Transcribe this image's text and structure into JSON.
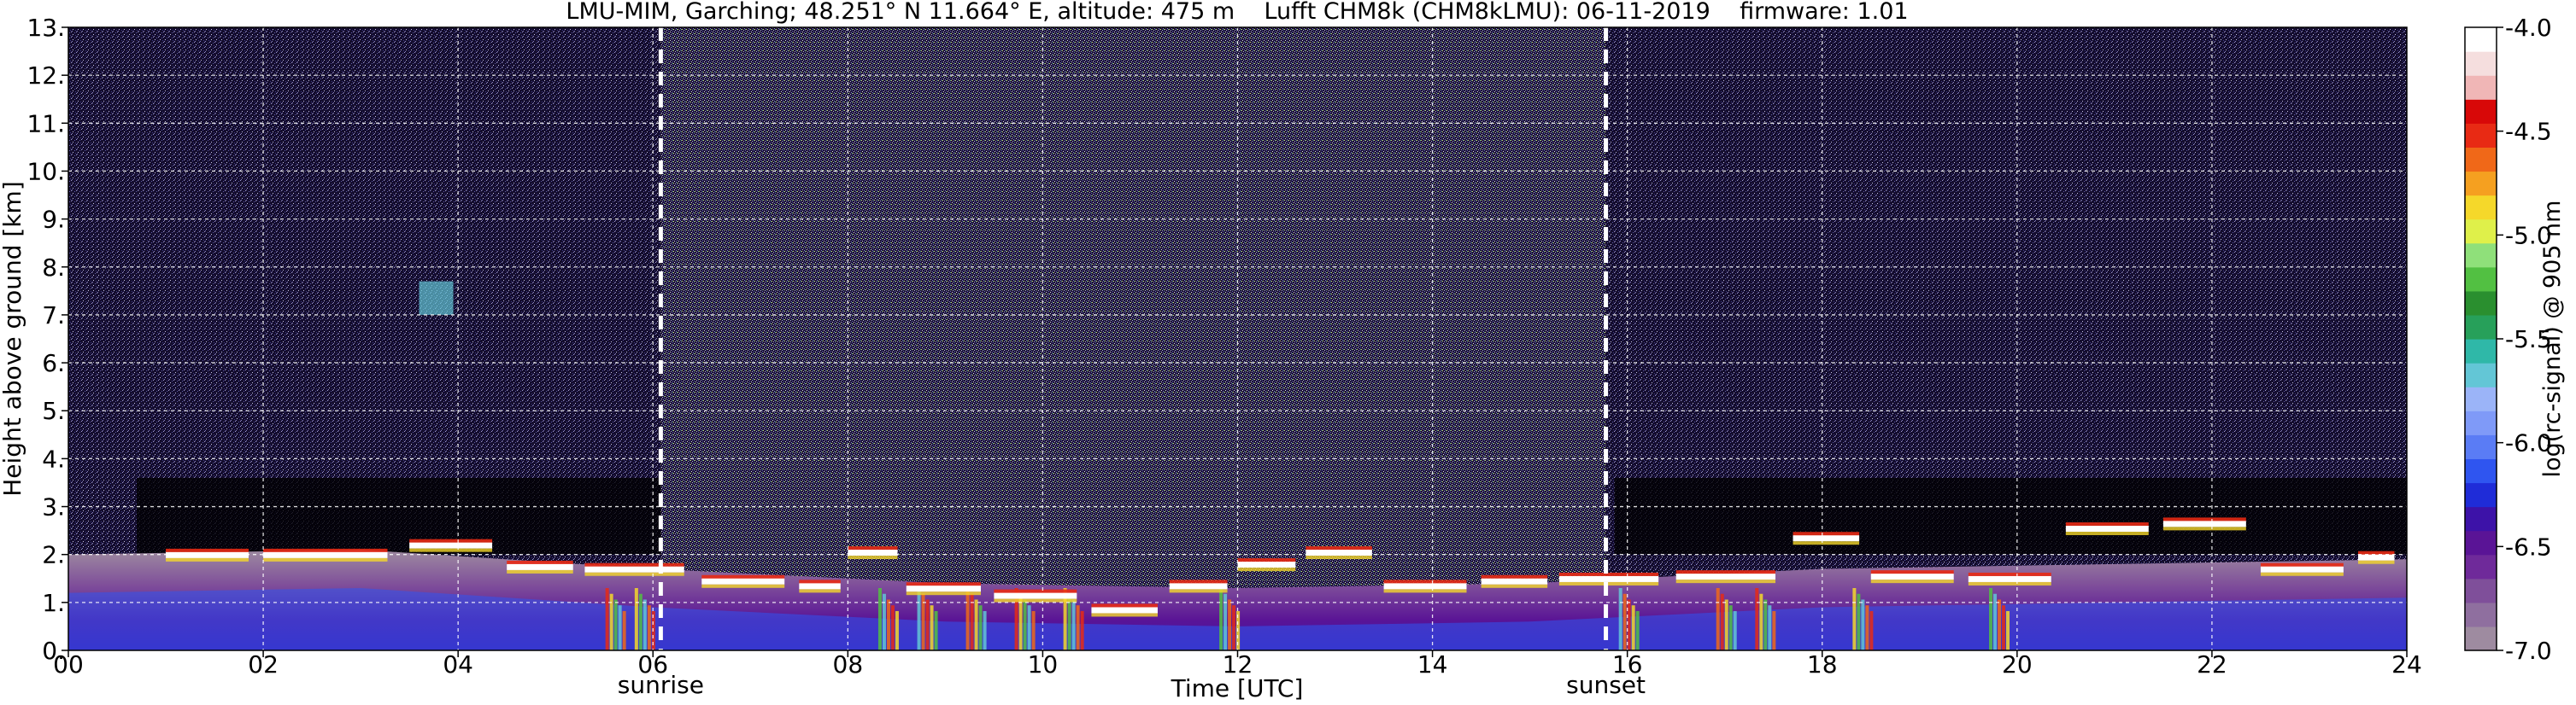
{
  "chart_data": {
    "type": "heatmap",
    "title": "LMU-MIM, Garching; 48.251° N 11.664° E, altitude: 475 m    Lufft CHM8k (CHM8kLMU): 06-11-2019    firmware: 1.01",
    "xlabel": "Time [UTC]",
    "ylabel": "Height above ground [km]",
    "xlim": [
      0,
      24
    ],
    "ylim": [
      0,
      13
    ],
    "x_ticks": [
      0,
      2,
      4,
      6,
      8,
      10,
      12,
      14,
      16,
      18,
      20,
      22,
      24
    ],
    "x_tick_labels": [
      "00",
      "02",
      "04",
      "06",
      "08",
      "10",
      "12",
      "14",
      "16",
      "18",
      "20",
      "22",
      "24"
    ],
    "y_ticks": [
      0,
      1,
      2,
      3,
      4,
      5,
      6,
      7,
      8,
      9,
      10,
      11,
      12,
      13
    ],
    "y_tick_labels": [
      "0.",
      "1.",
      "2.",
      "3.",
      "4.",
      "5.",
      "6.",
      "7.",
      "8.",
      "9.",
      "10.",
      "11.",
      "12.",
      "13."
    ],
    "grid": true,
    "sun_markers": [
      {
        "label": "sunrise",
        "time": 6.08
      },
      {
        "label": "sunset",
        "time": 15.78
      }
    ],
    "colorbar": {
      "label": "log(rc-signal) @ 905 nm",
      "min": -7.0,
      "max": -4.0,
      "ticks": [
        -7.0,
        -6.5,
        -6.0,
        -5.5,
        -5.0,
        -4.5,
        -4.0
      ],
      "tick_labels": [
        "-7.0",
        "-6.5",
        "-6.0",
        "-5.5",
        "-5.0",
        "-4.5",
        "-4.0"
      ],
      "colors": [
        "#9e8ba0",
        "#8f6f9f",
        "#7f4f9a",
        "#6f2a9a",
        "#5a1496",
        "#3d12a8",
        "#1f2cd8",
        "#2f55f0",
        "#5a7cf5",
        "#7f9af8",
        "#9bb4f8",
        "#63c6d6",
        "#2fb8a8",
        "#27a05a",
        "#2a8f2f",
        "#52c042",
        "#8fe07a",
        "#dff04a",
        "#f5d82a",
        "#f5a020",
        "#f06818",
        "#e82a14",
        "#d80808",
        "#f0b6b6",
        "#f5dede",
        "#ffffff"
      ]
    },
    "cloud_base_km": [
      {
        "t": 1.0,
        "h": 2.05
      },
      {
        "t": 2.0,
        "h": 2.05
      },
      {
        "t": 3.5,
        "h": 2.25
      },
      {
        "t": 4.5,
        "h": 1.8
      },
      {
        "t": 5.3,
        "h": 1.75
      },
      {
        "t": 6.5,
        "h": 1.5
      },
      {
        "t": 7.5,
        "h": 1.4
      },
      {
        "t": 8.0,
        "h": 2.1
      },
      {
        "t": 8.6,
        "h": 1.35
      },
      {
        "t": 9.5,
        "h": 1.2
      },
      {
        "t": 10.5,
        "h": 0.9
      },
      {
        "t": 11.3,
        "h": 1.4
      },
      {
        "t": 12.0,
        "h": 1.85
      },
      {
        "t": 12.7,
        "h": 2.1
      },
      {
        "t": 13.5,
        "h": 1.4
      },
      {
        "t": 14.5,
        "h": 1.5
      },
      {
        "t": 15.3,
        "h": 1.55
      },
      {
        "t": 16.5,
        "h": 1.6
      },
      {
        "t": 17.7,
        "h": 2.4
      },
      {
        "t": 18.5,
        "h": 1.6
      },
      {
        "t": 19.5,
        "h": 1.55
      },
      {
        "t": 20.5,
        "h": 2.6
      },
      {
        "t": 21.5,
        "h": 2.7
      },
      {
        "t": 22.5,
        "h": 1.75
      },
      {
        "t": 23.5,
        "h": 2.0
      }
    ],
    "boundary_layer_top_km": [
      {
        "t": 0,
        "h": 1.2
      },
      {
        "t": 3,
        "h": 1.3
      },
      {
        "t": 6,
        "h": 0.9
      },
      {
        "t": 9,
        "h": 0.6
      },
      {
        "t": 12,
        "h": 0.5
      },
      {
        "t": 15,
        "h": 0.6
      },
      {
        "t": 18,
        "h": 0.9
      },
      {
        "t": 21,
        "h": 1.0
      },
      {
        "t": 24,
        "h": 1.1
      }
    ]
  }
}
